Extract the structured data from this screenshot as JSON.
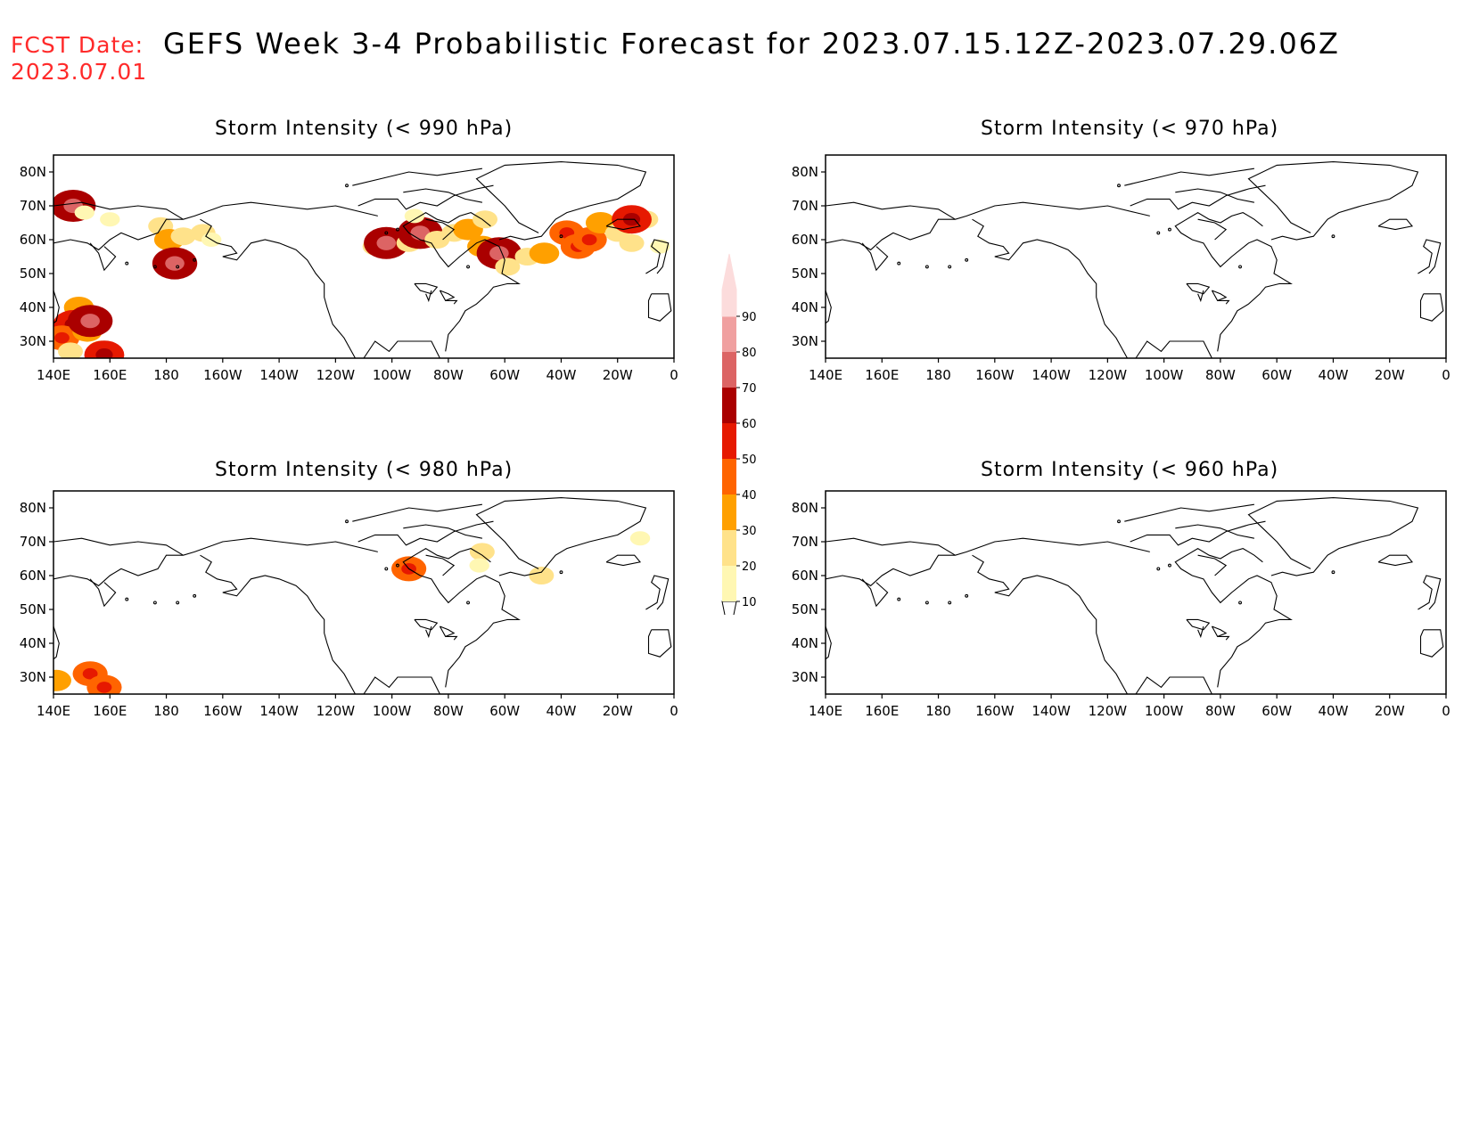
{
  "header": {
    "fcst_label": "FCST Date:",
    "fcst_date": "2023.07.01",
    "title": "GEFS Week 3-4 Probabilistic Forecast for 2023.07.15.12Z-2023.07.29.06Z",
    "fcst_color": "#ff2a2a"
  },
  "axes": {
    "lon_labels": [
      "140E",
      "160E",
      "180",
      "160W",
      "140W",
      "120W",
      "100W",
      "80W",
      "60W",
      "40W",
      "20W",
      "0"
    ],
    "lat_labels": [
      "80N",
      "70N",
      "60N",
      "50N",
      "40N",
      "30N"
    ],
    "lon_range": [
      140,
      360
    ],
    "lat_range": [
      25,
      85
    ]
  },
  "panels": [
    {
      "id": "p990",
      "title": "Storm Intensity (< 990 hPa)",
      "patches": [
        {
          "lon": 146,
          "lat": 68,
          "p": 20
        },
        {
          "lon": 147,
          "lat": 70,
          "p": 60
        },
        {
          "lon": 151,
          "lat": 68,
          "p": 10
        },
        {
          "lon": 160,
          "lat": 66,
          "p": 10
        },
        {
          "lon": 178,
          "lat": 64,
          "p": 20
        },
        {
          "lon": 181,
          "lat": 60,
          "p": 30
        },
        {
          "lon": 182,
          "lat": 55,
          "p": 20
        },
        {
          "lon": 183,
          "lat": 53,
          "p": 60
        },
        {
          "lon": 186,
          "lat": 61,
          "p": 20
        },
        {
          "lon": 193,
          "lat": 62,
          "p": 20
        },
        {
          "lon": 196,
          "lat": 60,
          "p": 10
        },
        {
          "lon": 149,
          "lat": 40,
          "p": 30
        },
        {
          "lon": 147,
          "lat": 35,
          "p": 50
        },
        {
          "lon": 143,
          "lat": 31,
          "p": 40
        },
        {
          "lon": 152,
          "lat": 33,
          "p": 30
        },
        {
          "lon": 153,
          "lat": 36,
          "p": 60
        },
        {
          "lon": 146,
          "lat": 27,
          "p": 20
        },
        {
          "lon": 157,
          "lat": 27,
          "p": 30
        },
        {
          "lon": 158,
          "lat": 26,
          "p": 50
        },
        {
          "lon": 254,
          "lat": 58,
          "p": 20
        },
        {
          "lon": 258,
          "lat": 59,
          "p": 60
        },
        {
          "lon": 266,
          "lat": 59,
          "p": 20
        },
        {
          "lon": 270,
          "lat": 62,
          "p": 60
        },
        {
          "lon": 268,
          "lat": 67,
          "p": 10
        },
        {
          "lon": 276,
          "lat": 60,
          "p": 20
        },
        {
          "lon": 282,
          "lat": 62,
          "p": 20
        },
        {
          "lon": 287,
          "lat": 63,
          "p": 30
        },
        {
          "lon": 292,
          "lat": 58,
          "p": 30
        },
        {
          "lon": 298,
          "lat": 56,
          "p": 60
        },
        {
          "lon": 293,
          "lat": 66,
          "p": 20
        },
        {
          "lon": 301,
          "lat": 52,
          "p": 20
        },
        {
          "lon": 308,
          "lat": 55,
          "p": 20
        },
        {
          "lon": 314,
          "lat": 56,
          "p": 30
        },
        {
          "lon": 322,
          "lat": 62,
          "p": 40
        },
        {
          "lon": 326,
          "lat": 58,
          "p": 40
        },
        {
          "lon": 330,
          "lat": 60,
          "p": 40
        },
        {
          "lon": 334,
          "lat": 65,
          "p": 30
        },
        {
          "lon": 340,
          "lat": 62,
          "p": 20
        },
        {
          "lon": 345,
          "lat": 59,
          "p": 20
        },
        {
          "lon": 350,
          "lat": 66,
          "p": 20
        },
        {
          "lon": 355,
          "lat": 58,
          "p": 10
        },
        {
          "lon": 345,
          "lat": 66,
          "p": 50
        }
      ]
    },
    {
      "id": "p970",
      "title": "Storm Intensity (< 970 hPa)",
      "patches": []
    },
    {
      "id": "p980",
      "title": "Storm Intensity (< 980 hPa)",
      "patches": [
        {
          "lon": 266,
          "lat": 62,
          "p": 40
        },
        {
          "lon": 292,
          "lat": 67,
          "p": 20
        },
        {
          "lon": 291,
          "lat": 63,
          "p": 10
        },
        {
          "lon": 313,
          "lat": 60,
          "p": 20
        },
        {
          "lon": 348,
          "lat": 71,
          "p": 10
        },
        {
          "lon": 141,
          "lat": 29,
          "p": 30
        },
        {
          "lon": 153,
          "lat": 31,
          "p": 40
        },
        {
          "lon": 158,
          "lat": 27,
          "p": 40
        }
      ]
    },
    {
      "id": "p960",
      "title": "Storm Intensity (< 960 hPa)",
      "patches": []
    }
  ],
  "colorbar": {
    "levels": [
      10,
      20,
      30,
      40,
      50,
      60,
      70,
      80,
      90
    ],
    "colors": [
      "#fff7b3",
      "#ffe28a",
      "#ffa000",
      "#ff6400",
      "#e61900",
      "#aa0000",
      "#dc6464",
      "#f0a0a0",
      "#fcdcdc"
    ]
  }
}
